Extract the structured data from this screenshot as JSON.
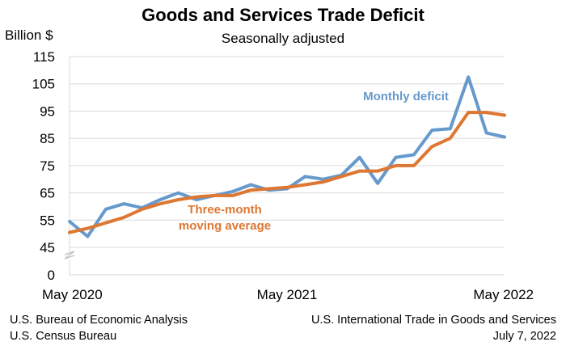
{
  "chart_data": {
    "type": "line",
    "title": "Goods and Services Trade Deficit",
    "subtitle": "Seasonally adjusted",
    "ylabel": "Billion $",
    "xlabel": "",
    "ylim": [
      45,
      115
    ],
    "yticks": [
      "115",
      "105",
      "95",
      "85",
      "75",
      "65",
      "55",
      "45",
      "0"
    ],
    "axis_break": true,
    "grid": true,
    "x_tick_labels": [
      "May 2020",
      "May 2021",
      "May 2022"
    ],
    "x": [
      "May 2020",
      "Jun 2020",
      "Jul 2020",
      "Aug 2020",
      "Sep 2020",
      "Oct 2020",
      "Nov 2020",
      "Dec 2020",
      "Jan 2021",
      "Feb 2021",
      "Mar 2021",
      "Apr 2021",
      "May 2021",
      "Jun 2021",
      "Jul 2021",
      "Aug 2021",
      "Sep 2021",
      "Oct 2021",
      "Nov 2021",
      "Dec 2021",
      "Jan 2022",
      "Feb 2022",
      "Mar 2022",
      "Apr 2022",
      "May 2022"
    ],
    "series": [
      {
        "name": "Monthly deficit",
        "color": "#6699cc",
        "values": [
          54.5,
          49.0,
          59.0,
          61.0,
          59.5,
          62.5,
          65.0,
          62.5,
          64.0,
          65.5,
          68.0,
          66.0,
          66.5,
          71.0,
          70.0,
          71.5,
          78.0,
          68.5,
          78.0,
          79.0,
          88.0,
          88.5,
          107.5,
          87.0,
          85.5
        ]
      },
      {
        "name": "Three-month moving average",
        "color": "#dd7733",
        "values": [
          50.5,
          52.0,
          54.0,
          56.0,
          59.0,
          61.0,
          62.5,
          63.5,
          64.0,
          64.0,
          66.0,
          66.5,
          67.0,
          68.0,
          69.0,
          71.0,
          73.0,
          73.0,
          75.0,
          75.0,
          82.0,
          85.0,
          94.5,
          94.5,
          93.5
        ]
      }
    ],
    "annotations": [
      {
        "text": "Monthly deficit",
        "series": 0
      },
      {
        "text_lines": [
          "Three-month",
          "moving average"
        ],
        "series": 1
      }
    ]
  },
  "footer": {
    "left_line1": "U.S. Bureau of Economic Analysis",
    "left_line2": "U.S. Census Bureau",
    "right_line1": "U.S. International Trade in Goods and Services",
    "right_line2": "July 7, 2022"
  }
}
